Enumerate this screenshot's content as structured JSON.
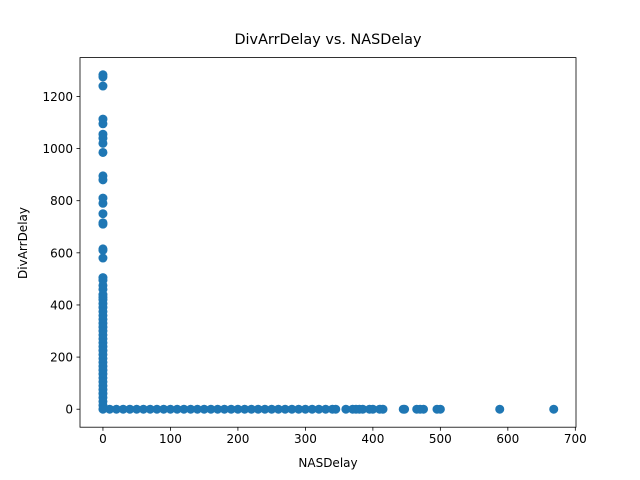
{
  "chart_data": {
    "type": "scatter",
    "title": "DivArrDelay vs. NASDelay",
    "x_label": "NASDelay",
    "y_label": "DivArrDelay",
    "color": "#1f77b4",
    "x": [
      0,
      0,
      0,
      0,
      0,
      0,
      0,
      0,
      0,
      0,
      0,
      0,
      0,
      0,
      0,
      0,
      0,
      0,
      0,
      0,
      0,
      0,
      0,
      0,
      0,
      0,
      0,
      0,
      0,
      0,
      0,
      0,
      0,
      0,
      0,
      0,
      0,
      0,
      0,
      0,
      0,
      0,
      0,
      0,
      0,
      0,
      0,
      0,
      0,
      0,
      0,
      0,
      0,
      0,
      10,
      20,
      30,
      40,
      50,
      60,
      70,
      80,
      90,
      100,
      110,
      120,
      130,
      140,
      150,
      160,
      170,
      180,
      190,
      200,
      210,
      220,
      230,
      240,
      250,
      260,
      270,
      280,
      290,
      300,
      310,
      320,
      330,
      340,
      345,
      360,
      370,
      375,
      380,
      385,
      395,
      400,
      410,
      415,
      445,
      447,
      465,
      470,
      475,
      495,
      500,
      588,
      668
    ],
    "y": [
      1283,
      1275,
      1240,
      1113,
      1095,
      1055,
      1040,
      1020,
      985,
      895,
      880,
      810,
      790,
      750,
      715,
      710,
      615,
      610,
      580,
      505,
      495,
      475,
      460,
      440,
      430,
      420,
      405,
      390,
      375,
      360,
      345,
      330,
      315,
      300,
      285,
      270,
      255,
      240,
      225,
      210,
      195,
      180,
      165,
      150,
      135,
      120,
      105,
      90,
      75,
      60,
      45,
      30,
      15,
      0,
      0,
      0,
      0,
      0,
      0,
      0,
      0,
      0,
      0,
      0,
      0,
      0,
      0,
      0,
      0,
      0,
      0,
      0,
      0,
      0,
      0,
      0,
      0,
      0,
      0,
      0,
      0,
      0,
      0,
      0,
      0,
      0,
      0,
      0,
      0,
      0,
      0,
      0,
      0,
      0,
      0,
      0,
      0,
      0,
      0,
      0,
      0,
      0,
      0,
      0,
      0,
      0,
      0
    ],
    "xlim": [
      -34,
      701
    ],
    "ylim": [
      -69,
      1349
    ],
    "xticks": [
      0,
      100,
      200,
      300,
      400,
      500,
      600,
      700
    ],
    "yticks": [
      0,
      200,
      400,
      600,
      800,
      1000,
      1200
    ]
  }
}
